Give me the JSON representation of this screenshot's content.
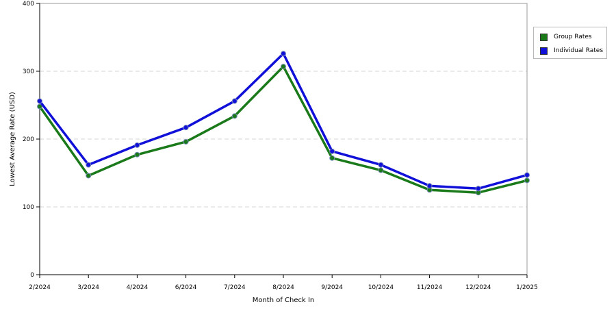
{
  "chart_data": {
    "type": "line",
    "xlabel": "Month of Check In",
    "ylabel": "Lowest Average Rate (USD)",
    "categories": [
      "2/2024",
      "3/2024",
      "4/2024",
      "6/2024",
      "7/2024",
      "8/2024",
      "9/2024",
      "10/2024",
      "11/2024",
      "12/2024",
      "1/2025"
    ],
    "ylim": [
      0,
      400
    ],
    "yticks": [
      0,
      100,
      200,
      300,
      400
    ],
    "grid": "horizontal dashed",
    "legend_position": "right",
    "series": [
      {
        "name": "Group Rates",
        "color": "#1a7a1a",
        "values": [
          248,
          146,
          177,
          196,
          234,
          307,
          172,
          154,
          125,
          121,
          139
        ]
      },
      {
        "name": "Individual Rates",
        "color": "#1010d8",
        "values": [
          256,
          162,
          191,
          217,
          256,
          326,
          182,
          162,
          131,
          127,
          147
        ]
      }
    ]
  }
}
